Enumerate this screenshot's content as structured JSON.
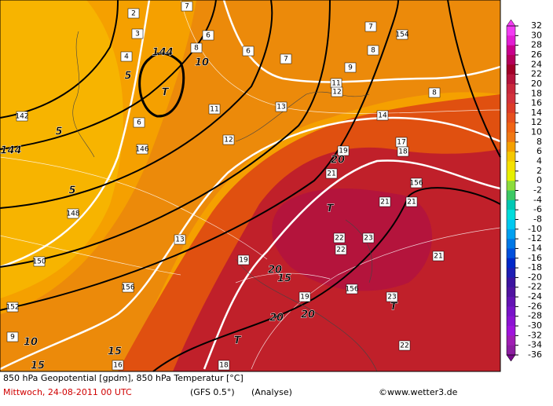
{
  "map": {
    "labels": [
      "144",
      "T",
      "10",
      "5",
      "5",
      "5",
      "142",
      "144",
      "146",
      "148",
      "150",
      "152",
      "154",
      "156",
      "156",
      "156",
      "2",
      "3",
      "4",
      "6",
      "6",
      "6",
      "7",
      "7",
      "7",
      "8",
      "8",
      "9",
      "11",
      "11",
      "12",
      "12",
      "13",
      "13",
      "14",
      "15",
      "15",
      "16",
      "17",
      "18",
      "18",
      "19",
      "19",
      "19",
      "20",
      "20",
      "20",
      "20",
      "T",
      "T",
      "T",
      "21",
      "21",
      "21",
      "21",
      "22",
      "22",
      "22",
      "23",
      "23",
      "10",
      "9",
      "15",
      "8"
    ]
  },
  "legend": {
    "values": [
      32,
      30,
      28,
      26,
      24,
      22,
      20,
      18,
      16,
      14,
      12,
      10,
      8,
      6,
      4,
      2,
      0,
      -2,
      -4,
      -6,
      -8,
      -10,
      -12,
      -14,
      -16,
      -18,
      -20,
      -22,
      -24,
      -26,
      -28,
      -30,
      -32,
      -34,
      -36
    ],
    "colors": [
      "#f23cf2",
      "#e11ed2",
      "#c8008c",
      "#b4005a",
      "#a00028",
      "#b4143c",
      "#c8283c",
      "#d2323c",
      "#dc3c28",
      "#e6501e",
      "#f06414",
      "#f07814",
      "#f5a000",
      "#f5c800",
      "#f5e100",
      "#e6f000",
      "#8cdc3c",
      "#3cc864",
      "#00c8b4",
      "#00dcdc",
      "#00c8f0",
      "#00a0f0",
      "#0078e6",
      "#0050dc",
      "#0028c8",
      "#1e1eb4",
      "#3c14a0",
      "#5014a0",
      "#6414b4",
      "#7814c8",
      "#8c14d2",
      "#a014dc",
      "#a01eb4",
      "#8c1ea0",
      "#780a8c"
    ]
  },
  "footer": {
    "line1": "850 hPa Geopotential [gpdm], 850 hPa Temperatur [°C]",
    "date": "Mittwoch, 24-08-2011  00 UTC",
    "model": "(GFS 0.5°)",
    "run": "(Analyse)",
    "credit": "©www.wetter3.de"
  }
}
